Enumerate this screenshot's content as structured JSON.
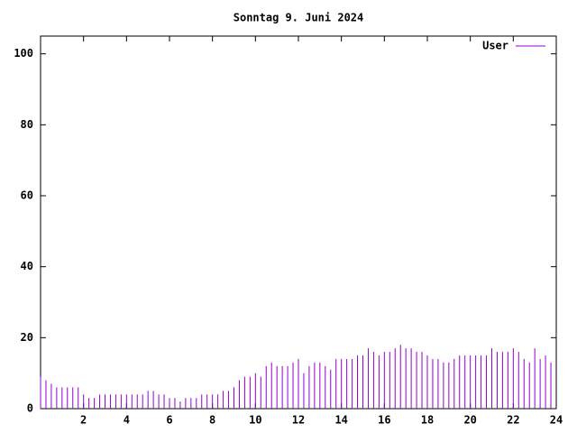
{
  "chart_data": {
    "type": "impulses",
    "title": "Sonntag 9. Juni 2024",
    "x": [
      0,
      0.25,
      0.5,
      0.75,
      1,
      1.25,
      1.5,
      1.75,
      2,
      2.25,
      2.5,
      2.75,
      3,
      3.25,
      3.5,
      3.75,
      4,
      4.25,
      4.5,
      4.75,
      5,
      5.25,
      5.5,
      5.75,
      6,
      6.25,
      6.5,
      6.75,
      7,
      7.25,
      7.5,
      7.75,
      8,
      8.25,
      8.5,
      8.75,
      9,
      9.25,
      9.5,
      9.75,
      10,
      10.25,
      10.5,
      10.75,
      11,
      11.25,
      11.5,
      11.75,
      12,
      12.25,
      12.5,
      12.75,
      13,
      13.25,
      13.5,
      13.75,
      14,
      14.25,
      14.5,
      14.75,
      15,
      15.25,
      15.5,
      15.75,
      16,
      16.25,
      16.5,
      16.75,
      17,
      17.25,
      17.5,
      17.75,
      18,
      18.25,
      18.5,
      18.75,
      19,
      19.25,
      19.5,
      19.75,
      20,
      20.25,
      20.5,
      20.75,
      21,
      21.25,
      21.5,
      21.75,
      22,
      22.25,
      22.5,
      22.75,
      23,
      23.25,
      23.5,
      23.75
    ],
    "series": [
      {
        "name": "User",
        "color": "#9400d3",
        "values": [
          9,
          8,
          7,
          6,
          6,
          6,
          6,
          6,
          4,
          3,
          3,
          4,
          4,
          4,
          4,
          4,
          4,
          4,
          4,
          4,
          5,
          5,
          4,
          4,
          3,
          3,
          2,
          3,
          3,
          3,
          4,
          4,
          4,
          4,
          5,
          5,
          6,
          8,
          9,
          9,
          10,
          9,
          12,
          13,
          12,
          12,
          12,
          13,
          14,
          10,
          12,
          13,
          13,
          12,
          11,
          14,
          14,
          14,
          14,
          15,
          15,
          17,
          16,
          15,
          16,
          16,
          17,
          18,
          17,
          17,
          16,
          16,
          15,
          14,
          14,
          13,
          13,
          14,
          15,
          15,
          15,
          15,
          15,
          15,
          17,
          16,
          16,
          16,
          17,
          16,
          14,
          13,
          17,
          14,
          15,
          13
        ]
      }
    ],
    "xlim": [
      0,
      24
    ],
    "xticks": [
      2,
      4,
      6,
      8,
      10,
      12,
      14,
      16,
      18,
      20,
      22,
      24
    ],
    "ylim": [
      0,
      105
    ],
    "yticks": [
      0,
      20,
      40,
      60,
      80,
      100
    ],
    "legend": "top-right"
  }
}
